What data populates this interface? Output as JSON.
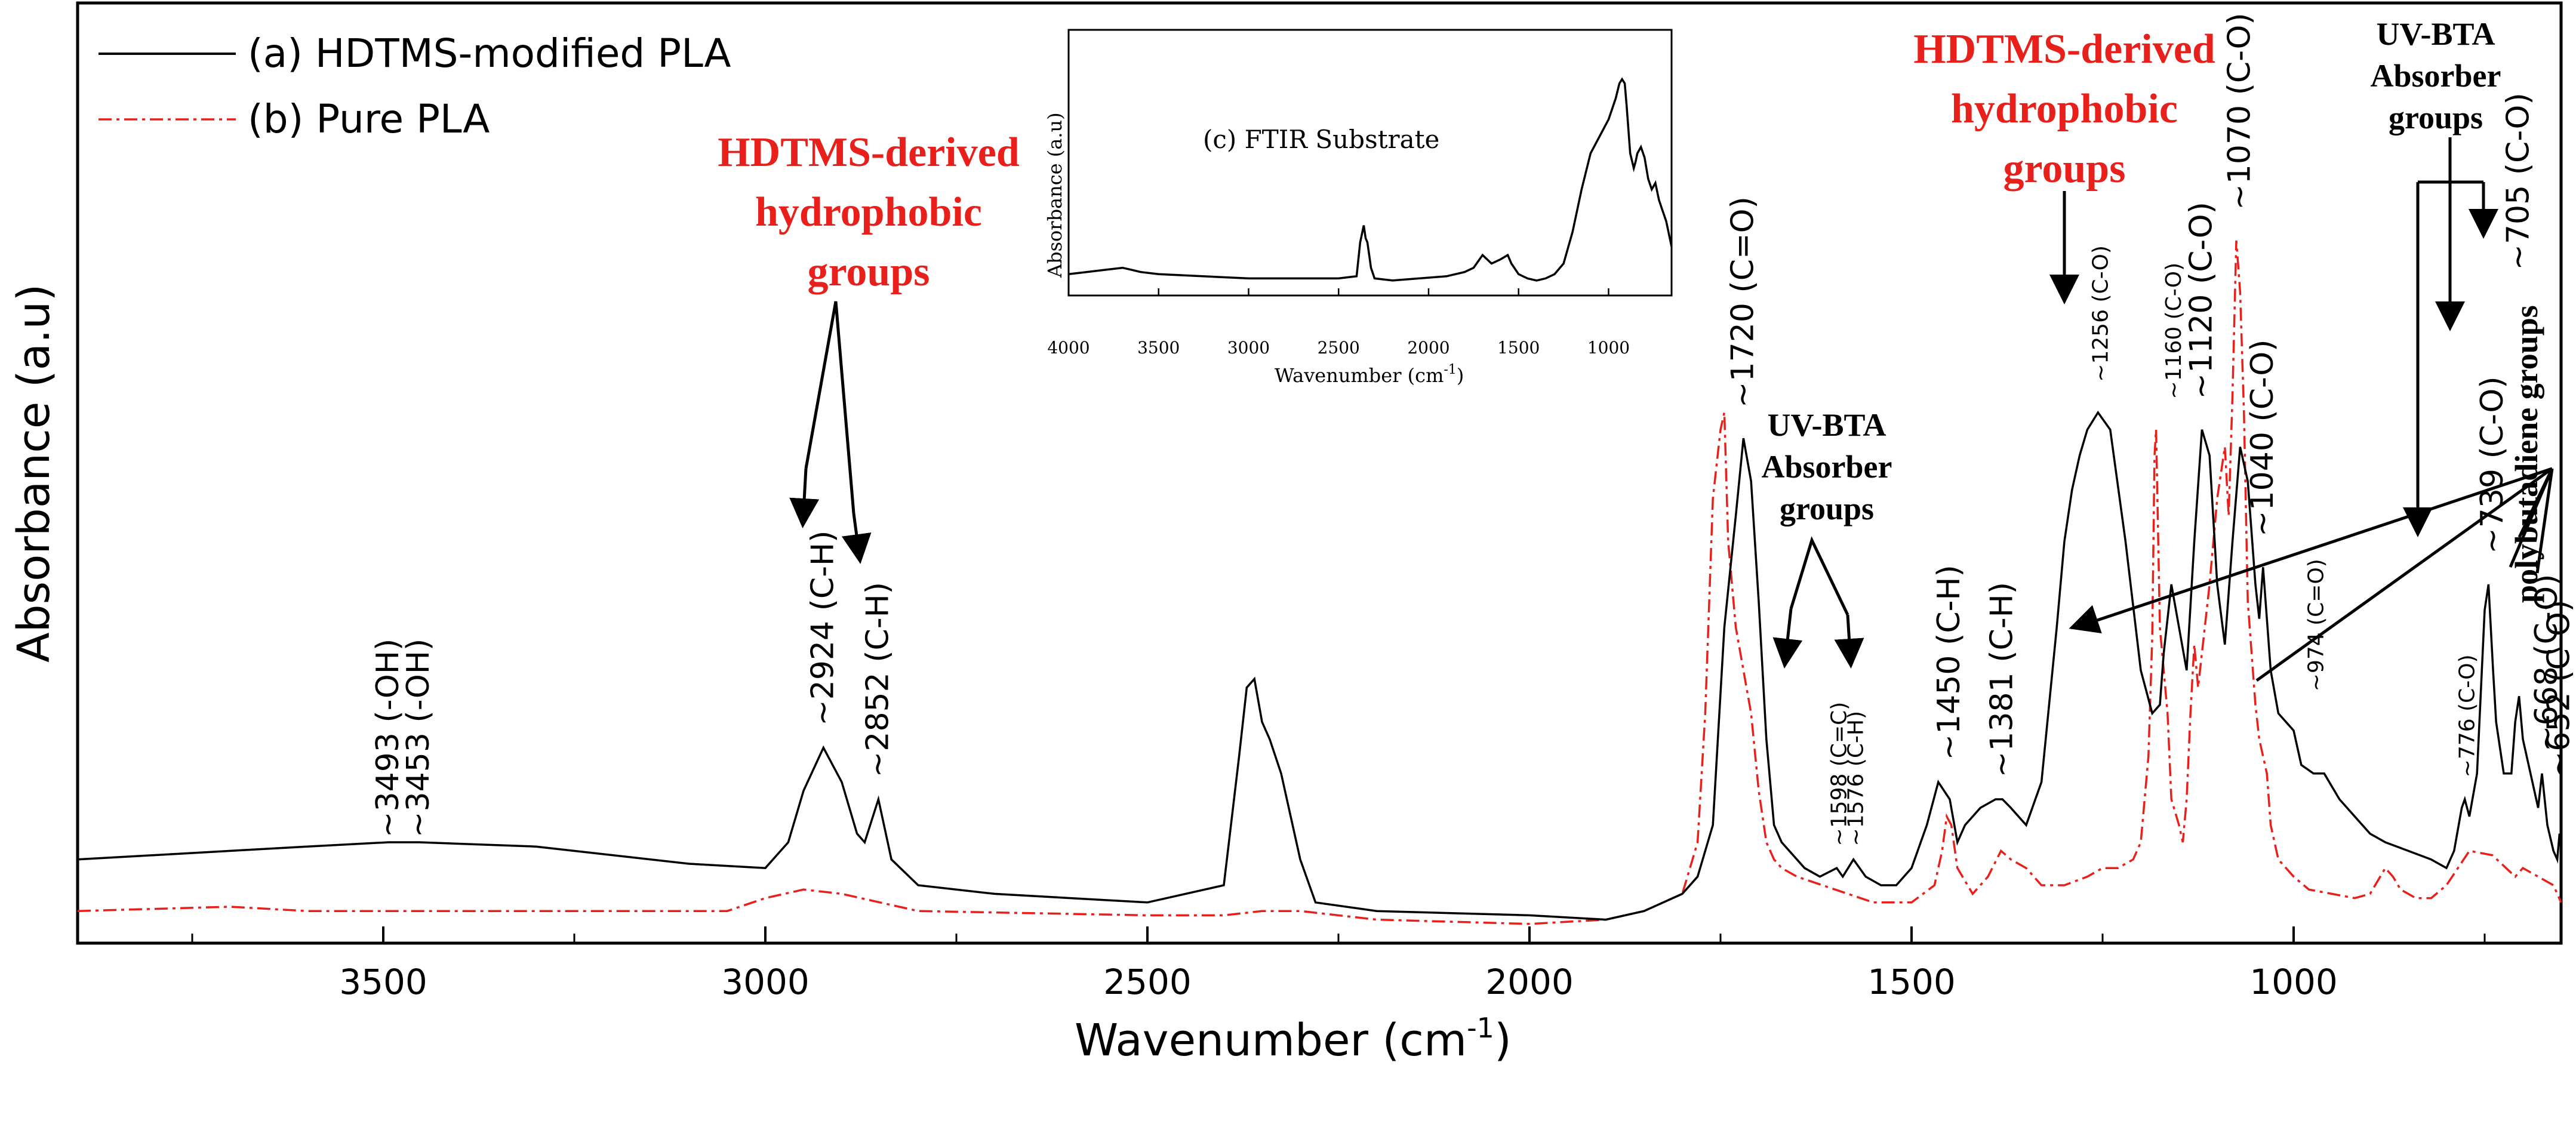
{
  "chart_data": {
    "type": "line",
    "xlabel": "Wavenumber (cm",
    "xlabel_sup": "-1",
    "xlabel_end": ")",
    "ylabel": "Absorbance (a.u)",
    "xlim": [
      3900,
      650
    ],
    "ylim": [
      0,
      1
    ],
    "x_ticks": [
      "3500",
      "3000",
      "2500",
      "2000",
      "1500",
      "1000"
    ],
    "series": [
      {
        "name": "(a) HDTMS-modified PLA",
        "color": "#000000",
        "style": "solid",
        "x": [
          3900,
          3800,
          3700,
          3600,
          3493,
          3453,
          3300,
          3100,
          3000,
          2970,
          2950,
          2924,
          2900,
          2880,
          2870,
          2852,
          2835,
          2800,
          2700,
          2500,
          2400,
          2380,
          2370,
          2360,
          2350,
          2340,
          2325,
          2300,
          2280,
          2200,
          2000,
          1900,
          1850,
          1800,
          1780,
          1760,
          1745,
          1730,
          1720,
          1710,
          1700,
          1690,
          1680,
          1670,
          1660,
          1650,
          1640,
          1620,
          1598,
          1590,
          1576,
          1560,
          1540,
          1520,
          1500,
          1480,
          1465,
          1450,
          1440,
          1430,
          1410,
          1390,
          1381,
          1370,
          1350,
          1330,
          1310,
          1300,
          1290,
          1280,
          1270,
          1256,
          1240,
          1220,
          1200,
          1185,
          1175,
          1170,
          1160,
          1150,
          1140,
          1130,
          1120,
          1110,
          1100,
          1090,
          1080,
          1070,
          1060,
          1050,
          1045,
          1040,
          1030,
          1020,
          1010,
          1000,
          990,
          974,
          960,
          940,
          920,
          900,
          880,
          850,
          820,
          800,
          790,
          780,
          776,
          770,
          760,
          750,
          745,
          739,
          735,
          725,
          715,
          710,
          705,
          700,
          690,
          680,
          675,
          668,
          660,
          655,
          652,
          650
        ],
        "y": [
          0.08,
          0.085,
          0.09,
          0.095,
          0.1,
          0.1,
          0.095,
          0.075,
          0.07,
          0.1,
          0.16,
          0.21,
          0.17,
          0.11,
          0.1,
          0.15,
          0.08,
          0.05,
          0.04,
          0.03,
          0.05,
          0.2,
          0.28,
          0.29,
          0.24,
          0.22,
          0.18,
          0.08,
          0.03,
          0.02,
          0.015,
          0.01,
          0.02,
          0.04,
          0.06,
          0.12,
          0.35,
          0.48,
          0.57,
          0.52,
          0.38,
          0.22,
          0.12,
          0.1,
          0.09,
          0.08,
          0.07,
          0.06,
          0.07,
          0.06,
          0.08,
          0.06,
          0.05,
          0.05,
          0.07,
          0.12,
          0.17,
          0.15,
          0.1,
          0.12,
          0.14,
          0.15,
          0.15,
          0.14,
          0.12,
          0.17,
          0.35,
          0.45,
          0.51,
          0.55,
          0.58,
          0.6,
          0.58,
          0.45,
          0.3,
          0.25,
          0.26,
          0.32,
          0.4,
          0.35,
          0.3,
          0.45,
          0.58,
          0.55,
          0.4,
          0.33,
          0.45,
          0.56,
          0.52,
          0.4,
          0.36,
          0.42,
          0.3,
          0.25,
          0.24,
          0.23,
          0.19,
          0.18,
          0.18,
          0.15,
          0.13,
          0.11,
          0.1,
          0.09,
          0.08,
          0.07,
          0.09,
          0.14,
          0.15,
          0.13,
          0.18,
          0.37,
          0.4,
          0.3,
          0.24,
          0.18,
          0.18,
          0.24,
          0.27,
          0.22,
          0.18,
          0.14,
          0.18,
          0.12,
          0.09,
          0.08,
          0.11,
          0.1
        ]
      },
      {
        "name": "(b) Pure PLA",
        "color": "#e8201b",
        "style": "dashdot",
        "x": [
          3900,
          3700,
          3600,
          3300,
          3050,
          3000,
          2950,
          2900,
          2850,
          2800,
          2500,
          2400,
          2350,
          2300,
          2200,
          2000,
          1900,
          1850,
          1800,
          1780,
          1770,
          1760,
          1750,
          1745,
          1740,
          1730,
          1720,
          1710,
          1700,
          1690,
          1680,
          1670,
          1650,
          1600,
          1550,
          1500,
          1470,
          1460,
          1454,
          1448,
          1440,
          1420,
          1400,
          1383,
          1370,
          1350,
          1330,
          1300,
          1270,
          1250,
          1230,
          1210,
          1200,
          1190,
          1185,
          1182,
          1180,
          1175,
          1165,
          1160,
          1150,
          1145,
          1140,
          1135,
          1130,
          1125,
          1110,
          1100,
          1090,
          1085,
          1080,
          1075,
          1070,
          1065,
          1060,
          1050,
          1045,
          1040,
          1035,
          1030,
          1020,
          1000,
          980,
          950,
          920,
          900,
          880,
          870,
          860,
          850,
          840,
          820,
          800,
          770,
          740,
          710,
          700,
          680,
          660,
          650
        ],
        "y": [
          0.02,
          0.025,
          0.02,
          0.02,
          0.02,
          0.035,
          0.045,
          0.04,
          0.03,
          0.02,
          0.015,
          0.015,
          0.02,
          0.02,
          0.01,
          0.005,
          0.01,
          0.02,
          0.04,
          0.1,
          0.25,
          0.5,
          0.58,
          0.6,
          0.45,
          0.35,
          0.3,
          0.25,
          0.16,
          0.1,
          0.08,
          0.07,
          0.06,
          0.045,
          0.03,
          0.03,
          0.05,
          0.09,
          0.13,
          0.12,
          0.07,
          0.04,
          0.06,
          0.09,
          0.08,
          0.07,
          0.05,
          0.05,
          0.06,
          0.07,
          0.07,
          0.08,
          0.1,
          0.2,
          0.34,
          0.55,
          0.58,
          0.35,
          0.25,
          0.15,
          0.12,
          0.1,
          0.15,
          0.25,
          0.33,
          0.28,
          0.4,
          0.5,
          0.56,
          0.48,
          0.62,
          0.8,
          0.74,
          0.6,
          0.38,
          0.26,
          0.22,
          0.2,
          0.18,
          0.12,
          0.08,
          0.06,
          0.045,
          0.04,
          0.035,
          0.04,
          0.07,
          0.06,
          0.045,
          0.04,
          0.035,
          0.035,
          0.05,
          0.09,
          0.085,
          0.06,
          0.07,
          0.06,
          0.05,
          0.03
        ]
      }
    ],
    "peak_labels": [
      {
        "x": 3493,
        "y": 0.1,
        "text": "~3493 (-OH)",
        "size": "n"
      },
      {
        "x": 3453,
        "y": 0.1,
        "text": "~3453 (-OH)",
        "size": "n"
      },
      {
        "x": 2924,
        "y": 0.23,
        "text": "~2924 (C-H)",
        "size": "n"
      },
      {
        "x": 2852,
        "y": 0.17,
        "text": "~2852 (C-H)",
        "size": "n"
      },
      {
        "x": 1720,
        "y": 0.6,
        "text": "~1720 (C=O)",
        "size": "n"
      },
      {
        "x": 1598,
        "y": 0.09,
        "text": "~1598 (C=C)",
        "size": "s"
      },
      {
        "x": 1576,
        "y": 0.09,
        "text": "~1576 (C-H)",
        "size": "s"
      },
      {
        "x": 1450,
        "y": 0.19,
        "text": "~1450 (C-H)",
        "size": "n"
      },
      {
        "x": 1381,
        "y": 0.17,
        "text": "~1381 (C-H)",
        "size": "n"
      },
      {
        "x": 1256,
        "y": 0.63,
        "text": "~1256 (C-O)",
        "size": "s"
      },
      {
        "x": 1160,
        "y": 0.61,
        "text": "~1160 (C-O)",
        "size": "s"
      },
      {
        "x": 1120,
        "y": 0.61,
        "text": "~1120 (C-O)",
        "size": "n"
      },
      {
        "x": 1070,
        "y": 0.83,
        "text": "~1070 (C-O)",
        "size": "n"
      },
      {
        "x": 1040,
        "y": 0.45,
        "text": "~1040 (C-O)",
        "size": "n"
      },
      {
        "x": 974,
        "y": 0.27,
        "text": "~974 (C=O)",
        "size": "s"
      },
      {
        "x": 776,
        "y": 0.17,
        "text": "~776 (C-O)",
        "size": "s"
      },
      {
        "x": 739,
        "y": 0.43,
        "text": "~739 (C-O)",
        "size": "n"
      },
      {
        "x": 705,
        "y": 0.76,
        "text": "~705 (C-O)",
        "size": "n"
      },
      {
        "x": 668,
        "y": 0.2,
        "text": "~668 (C-O)",
        "size": "n"
      },
      {
        "x": 652,
        "y": 0.17,
        "text": "~652 (C-O)",
        "size": "n"
      }
    ],
    "group_labels": {
      "hdtms_left": [
        "HDTMS-derived",
        "hydrophobic",
        "groups"
      ],
      "hdtms_right": [
        "HDTMS-derived",
        "hydrophobic",
        "groups"
      ],
      "uvbta_mid": [
        "UV-BTA",
        "Absorber",
        "groups"
      ],
      "uvbta_right": [
        "UV-BTA",
        "Absorber",
        "groups"
      ],
      "polybutadiene": "polybutadiene groups"
    },
    "inset": {
      "title": "(c) FTIR Substrate",
      "xlabel": "Wavenumber (cm",
      "xlabel_sup": "-1",
      "xlabel_end": ")",
      "ylabel": "Absorbance (a.u)",
      "xlim": [
        4000,
        650
      ],
      "x_ticks": [
        "4000",
        "3500",
        "3000",
        "2500",
        "2000",
        "1500",
        "1000"
      ],
      "x": [
        4000,
        3900,
        3800,
        3700,
        3650,
        3600,
        3500,
        3000,
        2500,
        2400,
        2380,
        2360,
        2350,
        2340,
        2330,
        2320,
        2300,
        2200,
        1900,
        1800,
        1750,
        1700,
        1650,
        1600,
        1560,
        1540,
        1500,
        1450,
        1400,
        1350,
        1300,
        1250,
        1200,
        1150,
        1100,
        1050,
        1000,
        960,
        940,
        925,
        910,
        900,
        880,
        860,
        850,
        840,
        820,
        800,
        780,
        760,
        740,
        720,
        700,
        680,
        660,
        650
      ],
      "y": [
        0.05,
        0.06,
        0.07,
        0.08,
        0.07,
        0.06,
        0.05,
        0.03,
        0.03,
        0.04,
        0.2,
        0.28,
        0.22,
        0.2,
        0.14,
        0.08,
        0.03,
        0.02,
        0.04,
        0.06,
        0.08,
        0.14,
        0.1,
        0.12,
        0.14,
        0.1,
        0.05,
        0.03,
        0.02,
        0.03,
        0.05,
        0.1,
        0.25,
        0.45,
        0.62,
        0.7,
        0.78,
        0.88,
        0.95,
        0.97,
        0.95,
        0.85,
        0.62,
        0.55,
        0.58,
        0.62,
        0.65,
        0.6,
        0.5,
        0.45,
        0.48,
        0.4,
        0.35,
        0.3,
        0.22,
        0.18
      ]
    }
  }
}
